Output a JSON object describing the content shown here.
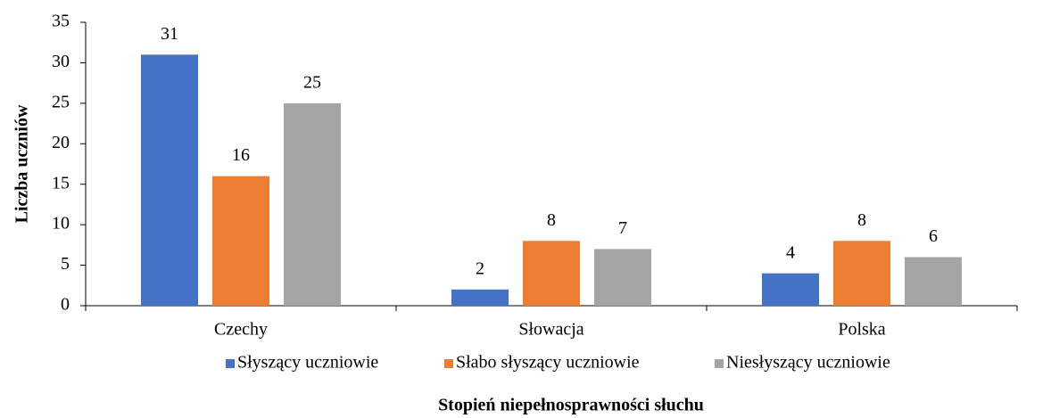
{
  "chart_data": {
    "type": "bar",
    "categories": [
      "Czechy",
      "Słowacja",
      "Polska"
    ],
    "series": [
      {
        "name": "Słyszący uczniowie",
        "color": "#4472c4",
        "values": [
          31,
          2,
          4
        ]
      },
      {
        "name": "Słabo słyszący uczniowie",
        "color": "#ed7d31",
        "values": [
          16,
          8,
          8
        ]
      },
      {
        "name": "Niesłyszący uczniowie",
        "color": "#a5a5a5",
        "values": [
          25,
          7,
          6
        ]
      }
    ],
    "ylim": [
      0,
      35
    ],
    "yticks": [
      0,
      5,
      10,
      15,
      20,
      25,
      30,
      35
    ],
    "y_label": "Liczba uczniów",
    "x_label": "Stopień niepełnosprawności słuchu",
    "grid": false,
    "legend": "bottom"
  }
}
